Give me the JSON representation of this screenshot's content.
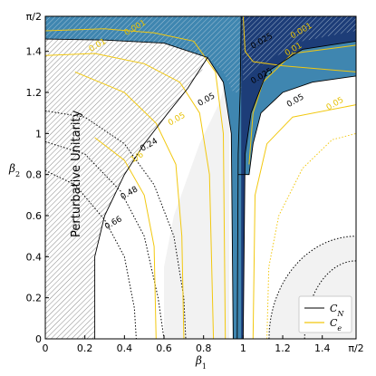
{
  "chart_data": {
    "type": "contour",
    "xlabel": "β1",
    "ylabel": "β2",
    "xlim": [
      0,
      1.5708
    ],
    "ylim": [
      0,
      1.5708
    ],
    "x_ticks": [
      {
        "v": 0,
        "label": "0"
      },
      {
        "v": 0.2,
        "label": "0.2"
      },
      {
        "v": 0.4,
        "label": "0.4"
      },
      {
        "v": 0.6,
        "label": "0.6"
      },
      {
        "v": 0.8,
        "label": "0.8"
      },
      {
        "v": 1.0,
        "label": "1"
      },
      {
        "v": 1.2,
        "label": "1.2"
      },
      {
        "v": 1.4,
        "label": "1.4"
      },
      {
        "v": 1.5708,
        "label": "π/2"
      }
    ],
    "y_ticks": [
      {
        "v": 0,
        "label": "0"
      },
      {
        "v": 0.2,
        "label": "0.2"
      },
      {
        "v": 0.4,
        "label": "0.4"
      },
      {
        "v": 0.6,
        "label": "0.6"
      },
      {
        "v": 0.8,
        "label": "0.8"
      },
      {
        "v": 1.0,
        "label": "1"
      },
      {
        "v": 1.2,
        "label": "1.2"
      },
      {
        "v": 1.4,
        "label": "1.4"
      },
      {
        "v": 1.5708,
        "label": "π/2"
      }
    ],
    "region_label": "Perturbative Unitarity",
    "legend": [
      {
        "name": "C_N",
        "sub_base": "C",
        "sub": "N",
        "color": "#333333"
      },
      {
        "name": "C_e",
        "sub_base": "C",
        "sub": "e",
        "color": "#f2c80f"
      }
    ],
    "contour_labels": [
      {
        "text": "0.001",
        "color": "#e6c000",
        "x": 0.46,
        "y": 1.505
      },
      {
        "text": "0.01",
        "color": "#e6c000",
        "x": 0.27,
        "y": 1.42
      },
      {
        "text": "0.05",
        "color": "#e6c000",
        "x": 0.67,
        "y": 1.06
      },
      {
        "text": "1/6",
        "color": "#e6c000",
        "x": 0.47,
        "y": 0.875
      },
      {
        "text": "0.05",
        "color": "#000000",
        "x": 0.82,
        "y": 1.155
      },
      {
        "text": "0.24",
        "color": "#000000",
        "x": 0.53,
        "y": 0.935
      },
      {
        "text": "0.48",
        "color": "#000000",
        "x": 0.43,
        "y": 0.7
      },
      {
        "text": "0.66",
        "color": "#000000",
        "x": 0.35,
        "y": 0.555
      },
      {
        "text": "0.025",
        "color": "#000000",
        "x": 1.1,
        "y": 1.44
      },
      {
        "text": "0.001",
        "color": "#e6c000",
        "x": 1.3,
        "y": 1.49
      },
      {
        "text": "0.01",
        "color": "#e6c000",
        "x": 1.26,
        "y": 1.4
      },
      {
        "text": "0.025",
        "color": "#000000",
        "x": 1.1,
        "y": 1.27
      },
      {
        "text": "0.05",
        "color": "#000000",
        "x": 1.27,
        "y": 1.15
      },
      {
        "text": "0.05",
        "color": "#e6c000",
        "x": 1.47,
        "y": 1.135
      }
    ],
    "colors": {
      "band_light": "#3f86b0",
      "band_dark": "#1d3d78",
      "gray_fill": "#f2f2f2",
      "hatch": "#555555",
      "ce_line": "#f2c80f",
      "cn_line": "#000000"
    }
  }
}
